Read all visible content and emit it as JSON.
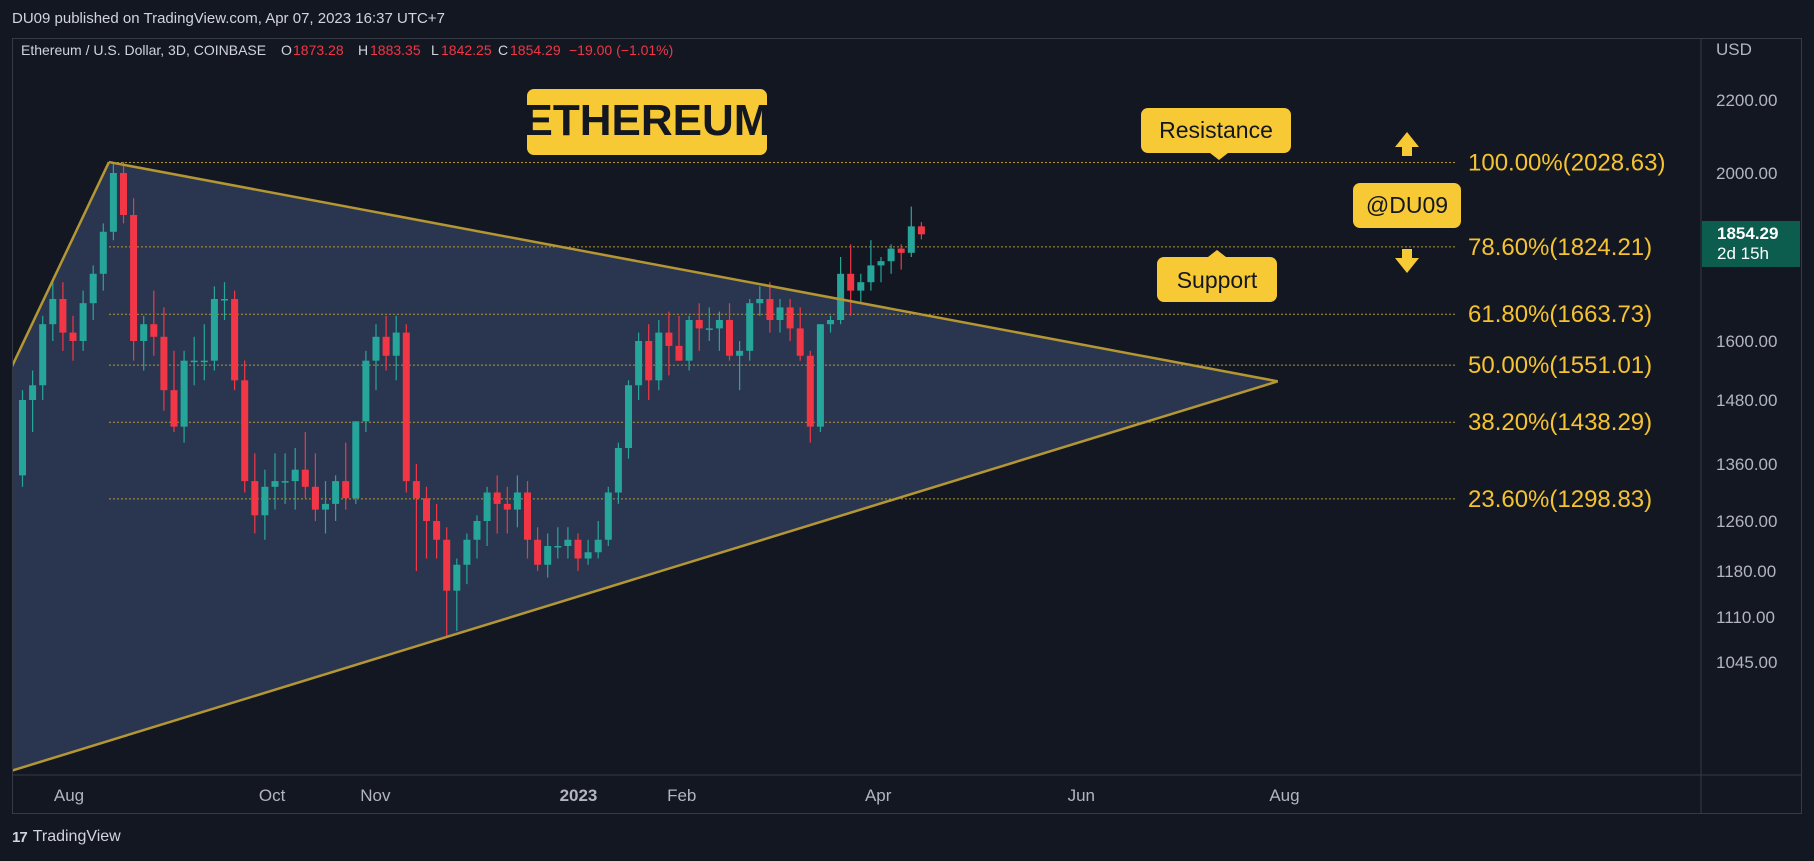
{
  "header": {
    "published": "DU09 published on TradingView.com, Apr 07, 2023 16:37 UTC+7"
  },
  "footer": {
    "brand": "TradingView"
  },
  "chart_data": {
    "type": "candlestick",
    "symbol": "Ethereum / U.S. Dollar, 3D, COINBASE",
    "ohlc": {
      "o_label": "O",
      "o": "1873.28",
      "h_label": "H",
      "h": "1883.35",
      "l_label": "L",
      "l": "1842.25",
      "c_label": "C",
      "c": "1854.29",
      "chg": "−19.00 (−1.01%)"
    },
    "currency": "USD",
    "price_axis": [
      "2200.00",
      "2000.00",
      "1600.00",
      "1480.00",
      "1360.00",
      "1260.00",
      "1180.00",
      "1110.00",
      "1045.00"
    ],
    "price_ticks": [
      2200,
      2000,
      1600,
      1480,
      1360,
      1260,
      1180,
      1110,
      1045
    ],
    "price_range": [
      1035,
      2450
    ],
    "last_price": {
      "value": "1854.29",
      "countdown": "2d 15h"
    },
    "time_axis": [
      {
        "label": "Aug",
        "date": "2022-08-01",
        "bold": false
      },
      {
        "label": "Oct",
        "date": "2022-10-01",
        "bold": false
      },
      {
        "label": "Nov",
        "date": "2022-11-01",
        "bold": false
      },
      {
        "label": "2023",
        "date": "2023-01-01",
        "bold": true
      },
      {
        "label": "Feb",
        "date": "2023-02-01",
        "bold": false
      },
      {
        "label": "Apr",
        "date": "2023-04-01",
        "bold": false
      },
      {
        "label": "Jun",
        "date": "2023-06-01",
        "bold": false
      },
      {
        "label": "Aug",
        "date": "2023-08-01",
        "bold": false
      }
    ],
    "fib_levels": [
      {
        "label": "100.00%(2028.63)",
        "price": 2028.63
      },
      {
        "label": "78.60%(1824.21)",
        "price": 1824.21
      },
      {
        "label": "61.80%(1663.73)",
        "price": 1663.73
      },
      {
        "label": "50.00%(1551.01)",
        "price": 1551.01
      },
      {
        "label": "38.20%(1438.29)",
        "price": 1438.29
      },
      {
        "label": "23.60%(1298.83)",
        "price": 1298.83
      }
    ],
    "triangle": {
      "top": {
        "date": "2022-08-13",
        "price": 2030
      },
      "apex": {
        "date": "2023-07-30",
        "price": 1518
      },
      "lower": {
        "date": "2022-10-26",
        "price": 1040
      },
      "left_top": {
        "date": "2022-07-04",
        "price": 1400
      },
      "left_low": {
        "date": "2022-07-01",
        "price": 1360
      }
    },
    "candles": [
      [
        1340,
        1500,
        1320,
        1480
      ],
      [
        1480,
        1540,
        1420,
        1510
      ],
      [
        1510,
        1660,
        1480,
        1640
      ],
      [
        1640,
        1740,
        1600,
        1700
      ],
      [
        1700,
        1740,
        1580,
        1620
      ],
      [
        1620,
        1660,
        1560,
        1600
      ],
      [
        1600,
        1720,
        1580,
        1690
      ],
      [
        1690,
        1780,
        1650,
        1760
      ],
      [
        1760,
        1880,
        1720,
        1860
      ],
      [
        1860,
        2030,
        1840,
        2000
      ],
      [
        2000,
        2030,
        1880,
        1900
      ],
      [
        1900,
        1940,
        1560,
        1600
      ],
      [
        1600,
        1660,
        1540,
        1640
      ],
      [
        1640,
        1720,
        1570,
        1610
      ],
      [
        1610,
        1680,
        1460,
        1500
      ],
      [
        1500,
        1580,
        1420,
        1430
      ],
      [
        1430,
        1580,
        1400,
        1560
      ],
      [
        1560,
        1610,
        1510,
        1560
      ],
      [
        1560,
        1640,
        1520,
        1560
      ],
      [
        1560,
        1730,
        1540,
        1700
      ],
      [
        1700,
        1740,
        1650,
        1700
      ],
      [
        1700,
        1720,
        1500,
        1520
      ],
      [
        1520,
        1560,
        1310,
        1330
      ],
      [
        1330,
        1380,
        1240,
        1270
      ],
      [
        1270,
        1350,
        1230,
        1320
      ],
      [
        1320,
        1380,
        1280,
        1330
      ],
      [
        1330,
        1380,
        1290,
        1330
      ],
      [
        1330,
        1390,
        1280,
        1350
      ],
      [
        1350,
        1420,
        1300,
        1320
      ],
      [
        1320,
        1380,
        1260,
        1280
      ],
      [
        1280,
        1330,
        1240,
        1290
      ],
      [
        1290,
        1340,
        1260,
        1330
      ],
      [
        1330,
        1400,
        1280,
        1300
      ],
      [
        1300,
        1440,
        1290,
        1440
      ],
      [
        1440,
        1580,
        1420,
        1560
      ],
      [
        1560,
        1640,
        1500,
        1610
      ],
      [
        1610,
        1660,
        1540,
        1570
      ],
      [
        1570,
        1660,
        1520,
        1620
      ],
      [
        1620,
        1640,
        1310,
        1330
      ],
      [
        1330,
        1360,
        1180,
        1300
      ],
      [
        1300,
        1320,
        1200,
        1260
      ],
      [
        1260,
        1290,
        1200,
        1230
      ],
      [
        1230,
        1250,
        1080,
        1150
      ],
      [
        1150,
        1200,
        1090,
        1190
      ],
      [
        1190,
        1240,
        1160,
        1230
      ],
      [
        1230,
        1270,
        1200,
        1260
      ],
      [
        1260,
        1320,
        1220,
        1310
      ],
      [
        1310,
        1340,
        1240,
        1290
      ],
      [
        1290,
        1320,
        1240,
        1280
      ],
      [
        1280,
        1340,
        1250,
        1310
      ],
      [
        1310,
        1330,
        1200,
        1230
      ],
      [
        1230,
        1250,
        1180,
        1190
      ],
      [
        1190,
        1240,
        1170,
        1220
      ],
      [
        1220,
        1250,
        1200,
        1220
      ],
      [
        1220,
        1250,
        1200,
        1230
      ],
      [
        1230,
        1240,
        1180,
        1200
      ],
      [
        1200,
        1230,
        1190,
        1210
      ],
      [
        1210,
        1260,
        1200,
        1230
      ],
      [
        1230,
        1320,
        1220,
        1310
      ],
      [
        1310,
        1400,
        1290,
        1390
      ],
      [
        1390,
        1520,
        1370,
        1510
      ],
      [
        1510,
        1620,
        1480,
        1600
      ],
      [
        1600,
        1640,
        1480,
        1520
      ],
      [
        1520,
        1650,
        1500,
        1620
      ],
      [
        1620,
        1670,
        1530,
        1590
      ],
      [
        1590,
        1660,
        1560,
        1560
      ],
      [
        1560,
        1660,
        1540,
        1650
      ],
      [
        1650,
        1690,
        1580,
        1630
      ],
      [
        1630,
        1680,
        1600,
        1630
      ],
      [
        1630,
        1670,
        1580,
        1650
      ],
      [
        1650,
        1690,
        1560,
        1570
      ],
      [
        1570,
        1600,
        1500,
        1580
      ],
      [
        1580,
        1700,
        1560,
        1690
      ],
      [
        1690,
        1730,
        1660,
        1700
      ],
      [
        1700,
        1740,
        1620,
        1650
      ],
      [
        1650,
        1700,
        1620,
        1680
      ],
      [
        1680,
        1700,
        1600,
        1630
      ],
      [
        1630,
        1680,
        1560,
        1570
      ],
      [
        1570,
        1580,
        1400,
        1430
      ],
      [
        1430,
        1640,
        1420,
        1640
      ],
      [
        1640,
        1660,
        1620,
        1650
      ],
      [
        1650,
        1800,
        1640,
        1760
      ],
      [
        1760,
        1830,
        1660,
        1720
      ],
      [
        1720,
        1760,
        1690,
        1740
      ],
      [
        1740,
        1840,
        1720,
        1780
      ],
      [
        1780,
        1800,
        1740,
        1790
      ],
      [
        1790,
        1830,
        1760,
        1820
      ],
      [
        1820,
        1830,
        1770,
        1810
      ],
      [
        1810,
        1920,
        1800,
        1873
      ],
      [
        1873,
        1883,
        1842,
        1854
      ]
    ],
    "annotations": {
      "title": "ETHEREUM",
      "resistance": "Resistance",
      "support": "Support",
      "watermark": "@DU09"
    },
    "colors": {
      "up": "#26a69a",
      "down": "#f23645",
      "fib": "#f5c331",
      "triangle_fill": "#2a3650",
      "triangle_line": "#b49734",
      "label_bg": "#f7c934",
      "last_price_bg": "#0c5d4e"
    }
  }
}
